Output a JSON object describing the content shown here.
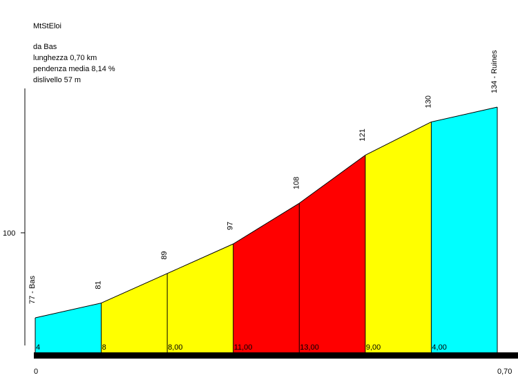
{
  "chart_data": {
    "type": "area",
    "title": "MtStEloi",
    "info": {
      "start": "da Bas",
      "length": "lunghezza 0,70 km",
      "avg_gradient": "pendenza media 8,14 %",
      "elevation_gain": "dislivello 57 m"
    },
    "x_km": [
      0,
      0.1,
      0.2,
      0.3,
      0.4,
      0.5,
      0.6,
      0.7
    ],
    "elevation": [
      77,
      81,
      89,
      97,
      108,
      121,
      130,
      134
    ],
    "elevation_labels": [
      "77 - Bas",
      "81",
      "89",
      "97",
      "108",
      "121",
      "130",
      "134 - Ruines"
    ],
    "segment_gradients": [
      "4",
      "8",
      "8,00",
      "11,00",
      "13,00",
      "9,00",
      "4,00"
    ],
    "segment_colors": [
      "#00ffff",
      "#ffff00",
      "#ffff00",
      "#ff0000",
      "#ff0000",
      "#ffff00",
      "#00ffff"
    ],
    "x_tick_labels": [
      "0",
      "0,70"
    ],
    "y_ticks": [
      100
    ],
    "y_tick_labels": [
      "100"
    ],
    "xlim": [
      0,
      0.7
    ]
  }
}
